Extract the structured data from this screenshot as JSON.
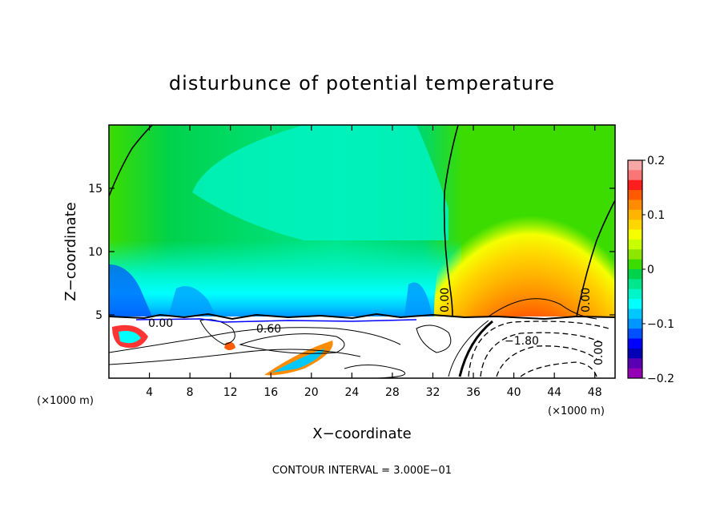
{
  "chart_data": {
    "type": "heatmap",
    "title": "disturbunce of potential temperature",
    "xlabel": "X−coordinate",
    "ylabel": "Z−coordinate",
    "x_unit_left": "(×1000 m)",
    "x_unit_right": "(×1000 m)",
    "xlim": [
      0,
      50
    ],
    "ylim": [
      0,
      20
    ],
    "x_ticks": [
      4,
      8,
      12,
      16,
      20,
      24,
      28,
      32,
      36,
      40,
      44,
      48
    ],
    "y_ticks": [
      5,
      10,
      15
    ],
    "colorbar": {
      "range": [
        -0.2,
        0.2
      ],
      "tick_values": [
        0.2,
        0.1,
        0,
        -0.1,
        -0.2
      ],
      "tick_labels": [
        "0.2",
        "0.1",
        "0",
        "−0.1",
        "−0.2"
      ],
      "colors": [
        "#f7a6a6",
        "#fa7575",
        "#ff1e1e",
        "#ff5a00",
        "#ff8c00",
        "#ffb400",
        "#ffd700",
        "#f5ff00",
        "#c8ff00",
        "#8ce600",
        "#3cdc00",
        "#00d24b",
        "#00e68c",
        "#00f5c8",
        "#00ffff",
        "#00c8ff",
        "#0096ff",
        "#0050ff",
        "#0000ff",
        "#0000b4",
        "#5a00b4",
        "#9600b4"
      ]
    },
    "contour_labels": [
      "0.00",
      "0.60",
      "0.00",
      "0.00",
      "−1.80",
      "0.00"
    ],
    "footer": "CONTOUR INTERVAL = 3.000E−01"
  },
  "colors": {
    "background_upper": "#00e68c",
    "warm_core": "#ff1e1e",
    "cool_anomaly": "#00c8ff"
  }
}
